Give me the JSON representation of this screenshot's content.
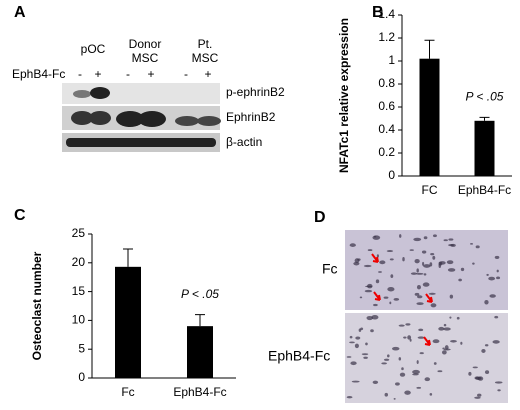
{
  "panel_labels": [
    "A",
    "B",
    "C",
    "D"
  ],
  "blot": {
    "group_labels": [
      [
        "pOC"
      ],
      [
        "Donor",
        "MSC"
      ],
      [
        "Pt.",
        "MSC"
      ]
    ],
    "treatment_label": "EphB4-Fc",
    "signs": [
      "-",
      "+",
      "-",
      "+",
      "-",
      "+"
    ],
    "band_labels": [
      "p-ephrinB2",
      "EphrinB2",
      "β-actin"
    ]
  },
  "images": {
    "labels": [
      "Fc",
      "EphB4-Fc"
    ]
  },
  "chart_data": [
    {
      "type": "bar",
      "ylabel": "NFATc1 relative expression",
      "categories": [
        "FC",
        "EphB4-Fc"
      ],
      "values": [
        1.02,
        0.48
      ],
      "errors": [
        0.16,
        0.03
      ],
      "color": "#000000",
      "ylim": [
        0,
        1.4
      ],
      "yticks": [
        0,
        0.2,
        0.4,
        0.6,
        0.8,
        1,
        1.2,
        1.4
      ],
      "annotation": "P < .05"
    },
    {
      "type": "bar",
      "ylabel": "Osteoclast number",
      "categories": [
        "Fc",
        "EphB4-Fc"
      ],
      "values": [
        19.3,
        9.0
      ],
      "errors": [
        3.1,
        2.0
      ],
      "color": "#000000",
      "ylim": [
        0,
        25
      ],
      "yticks": [
        0,
        5,
        10,
        15,
        20,
        25
      ],
      "annotation": "P < .05"
    }
  ]
}
